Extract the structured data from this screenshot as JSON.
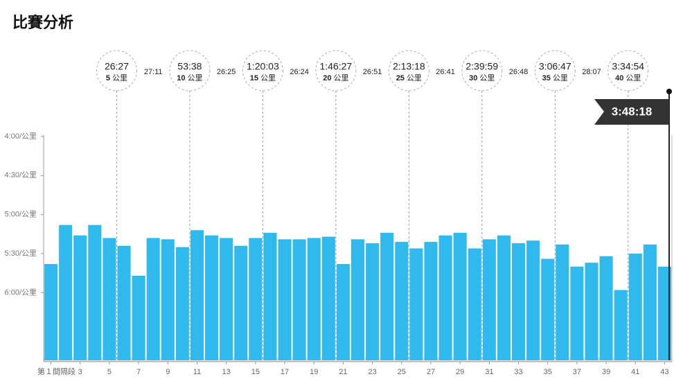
{
  "chart_data": {
    "type": "bar",
    "title": "比賽分析",
    "categories": [
      "第１間隔段",
      null,
      "3",
      null,
      "5",
      null,
      "7",
      null,
      "9",
      null,
      "11",
      null,
      "13",
      null,
      "15",
      null,
      "17",
      null,
      "19",
      null,
      "21",
      null,
      "23",
      null,
      "25",
      null,
      "27",
      null,
      "29",
      null,
      "31",
      null,
      "33",
      null,
      "35",
      null,
      "37",
      null,
      "39",
      null,
      "41",
      null,
      "43"
    ],
    "values": [
      338,
      308,
      316,
      308,
      318,
      324,
      347,
      318,
      319,
      325,
      312,
      316,
      318,
      324,
      318,
      314,
      319,
      319,
      318,
      317,
      338,
      319,
      322,
      314,
      321,
      326,
      321,
      316,
      314,
      326,
      319,
      316,
      322,
      320,
      334,
      323,
      340,
      337,
      332,
      358,
      330,
      323,
      340
    ],
    "color": "#2fb9ec",
    "ylim": [
      412,
      240
    ],
    "yticks": [
      {
        "value": 240,
        "label": "4:00/公里"
      },
      {
        "value": 270,
        "label": "4:30/公里"
      },
      {
        "value": 300,
        "label": "5:00/公里"
      },
      {
        "value": 330,
        "label": "5:30/公里"
      },
      {
        "value": 360,
        "label": "6:00/公里"
      }
    ],
    "unit": "公里",
    "splits": [
      {
        "km": 5,
        "time": "26:27"
      },
      {
        "km": 10,
        "time": "53:38"
      },
      {
        "km": 15,
        "time": "1:20:03"
      },
      {
        "km": 20,
        "time": "1:46:27"
      },
      {
        "km": 25,
        "time": "2:13:18"
      },
      {
        "km": 30,
        "time": "2:39:59"
      },
      {
        "km": 35,
        "time": "3:06:47"
      },
      {
        "km": 40,
        "time": "3:34:54"
      }
    ],
    "intervals": [
      "27:11",
      "26:25",
      "26:24",
      "26:51",
      "26:41",
      "26:48",
      "28:07"
    ],
    "finish": "3:48:18"
  }
}
